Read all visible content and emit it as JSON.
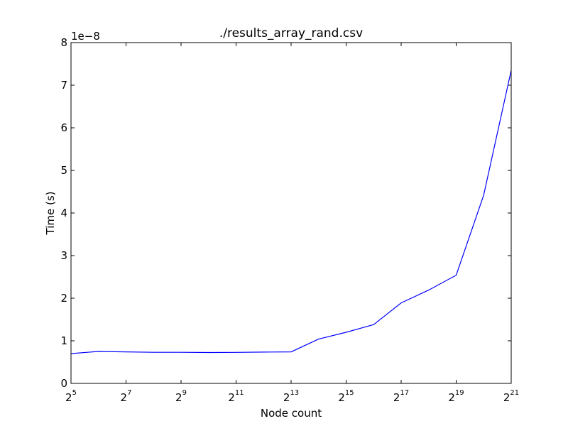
{
  "chart_data": {
    "type": "line",
    "title": "./results_array_rand.csv",
    "xlabel": "Node count",
    "ylabel": "Time (s)",
    "x_scale": "log2",
    "x_ticks": [
      {
        "base": "2",
        "exp": "5"
      },
      {
        "base": "2",
        "exp": "7"
      },
      {
        "base": "2",
        "exp": "9"
      },
      {
        "base": "2",
        "exp": "11"
      },
      {
        "base": "2",
        "exp": "13"
      },
      {
        "base": "2",
        "exp": "15"
      },
      {
        "base": "2",
        "exp": "17"
      },
      {
        "base": "2",
        "exp": "19"
      },
      {
        "base": "2",
        "exp": "21"
      }
    ],
    "y_ticks": [
      "0",
      "1",
      "2",
      "3",
      "4",
      "5",
      "6",
      "7",
      "8"
    ],
    "y_offset_label": "1e−8",
    "xlim": [
      32,
      2097152
    ],
    "ylim": [
      0,
      8e-08
    ],
    "grid": false,
    "legend": "none",
    "series": [
      {
        "color": "#0000ff",
        "x": [
          32,
          64,
          128,
          256,
          512,
          1024,
          2048,
          4096,
          8192,
          16384,
          32768,
          65536,
          131072,
          262144,
          524288,
          1048576,
          2097152
        ],
        "y": [
          7e-09,
          7.5e-09,
          7.4e-09,
          7.3e-09,
          7.3e-09,
          7.25e-09,
          7.28e-09,
          7.35e-09,
          7.4e-09,
          1.04e-08,
          1.2e-08,
          1.38e-08,
          1.89e-08,
          2.19e-08,
          2.54e-08,
          4.42e-08,
          7.35e-08
        ]
      }
    ]
  }
}
